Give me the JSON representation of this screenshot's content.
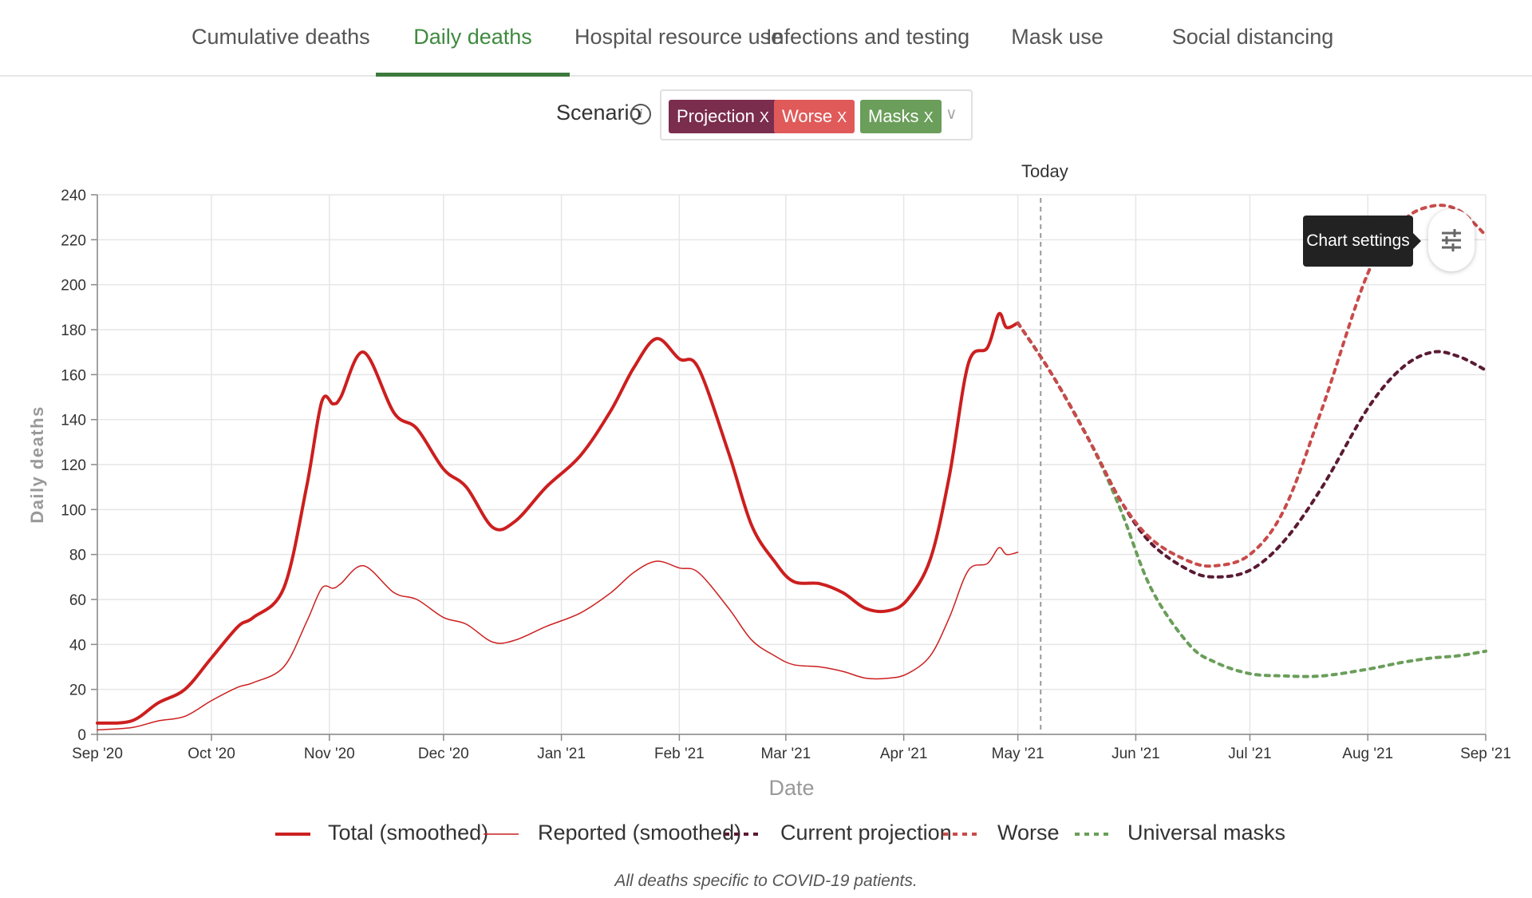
{
  "tabs": [
    {
      "label": "Cumulative deaths",
      "active": false
    },
    {
      "label": "Daily deaths",
      "active": true
    },
    {
      "label": "Hospital resource use",
      "active": false
    },
    {
      "label": "Infections and testing",
      "active": false
    },
    {
      "label": "Mask use",
      "active": false
    },
    {
      "label": "Social distancing",
      "active": false
    }
  ],
  "scenario": {
    "label": "Scenario",
    "info_icon": "info-icon",
    "chips": [
      {
        "label": "Projection",
        "remove": "X",
        "color": "#7b2d4e"
      },
      {
        "label": "Worse",
        "remove": "X",
        "color": "#e05a5a"
      },
      {
        "label": "Masks",
        "remove": "X",
        "color": "#6a9e5a"
      }
    ],
    "dropdown_icon": "chevron-down-icon"
  },
  "tooltip": "Chart settings",
  "settings_icon": "sliders-icon",
  "footnote": "All deaths specific to COVID-19 patients.",
  "chart_data": {
    "type": "line",
    "xlabel": "Date",
    "ylabel": "Daily deaths",
    "ylim": [
      0,
      240
    ],
    "yticks": [
      0,
      20,
      40,
      60,
      80,
      100,
      120,
      140,
      160,
      180,
      200,
      220,
      240
    ],
    "xticks": [
      "Sep '20",
      "Oct '20",
      "Nov '20",
      "Dec '20",
      "Jan '21",
      "Feb '21",
      "Mar '21",
      "Apr '21",
      "May '21",
      "Jun '21",
      "Jul '21",
      "Aug '21",
      "Sep '21"
    ],
    "xtick_dates": [
      "2020-09-01",
      "2020-10-01",
      "2020-11-01",
      "2020-12-01",
      "2021-01-01",
      "2021-02-01",
      "2021-03-01",
      "2021-04-01",
      "2021-05-01",
      "2021-06-01",
      "2021-07-01",
      "2021-08-01",
      "2021-09-01"
    ],
    "xlim": [
      "2020-09-01",
      "2021-09-01"
    ],
    "grid": true,
    "today": {
      "label": "Today",
      "date": "2021-05-07"
    },
    "legend_position": "bottom",
    "series": [
      {
        "name": "Total (smoothed)",
        "color": "#cc1f1f",
        "style": "solid",
        "width": 4,
        "x": [
          "2020-09-01",
          "2020-09-10",
          "2020-09-17",
          "2020-09-24",
          "2020-10-01",
          "2020-10-08",
          "2020-10-12",
          "2020-10-20",
          "2020-10-26",
          "2020-10-30",
          "2020-11-02",
          "2020-11-04",
          "2020-11-10",
          "2020-11-18",
          "2020-11-24",
          "2020-12-01",
          "2020-12-07",
          "2020-12-14",
          "2020-12-20",
          "2020-12-28",
          "2021-01-06",
          "2021-01-14",
          "2021-01-20",
          "2021-01-26",
          "2021-02-01",
          "2021-02-06",
          "2021-02-14",
          "2021-02-20",
          "2021-02-26",
          "2021-03-03",
          "2021-03-10",
          "2021-03-16",
          "2021-03-22",
          "2021-03-28",
          "2021-04-02",
          "2021-04-08",
          "2021-04-13",
          "2021-04-18",
          "2021-04-23",
          "2021-04-26",
          "2021-04-28",
          "2021-05-01"
        ],
        "y": [
          5,
          6,
          14,
          20,
          34,
          48,
          52,
          65,
          110,
          148,
          147,
          150,
          170,
          143,
          136,
          118,
          110,
          92,
          95,
          110,
          124,
          144,
          163,
          176,
          167,
          163,
          125,
          93,
          77,
          68,
          67,
          63,
          56,
          55,
          60,
          78,
          115,
          165,
          172,
          187,
          181,
          183
        ]
      },
      {
        "name": "Reported (smoothed)",
        "color": "#cc1f1f",
        "style": "solid",
        "width": 1.5,
        "x": [
          "2020-09-01",
          "2020-09-10",
          "2020-09-17",
          "2020-09-24",
          "2020-10-01",
          "2020-10-08",
          "2020-10-12",
          "2020-10-20",
          "2020-10-26",
          "2020-10-30",
          "2020-11-02",
          "2020-11-04",
          "2020-11-10",
          "2020-11-18",
          "2020-11-24",
          "2020-12-01",
          "2020-12-07",
          "2020-12-14",
          "2020-12-20",
          "2020-12-28",
          "2021-01-06",
          "2021-01-14",
          "2021-01-20",
          "2021-01-26",
          "2021-02-01",
          "2021-02-06",
          "2021-02-14",
          "2021-02-20",
          "2021-02-26",
          "2021-03-03",
          "2021-03-10",
          "2021-03-16",
          "2021-03-22",
          "2021-03-28",
          "2021-04-02",
          "2021-04-08",
          "2021-04-13",
          "2021-04-18",
          "2021-04-23",
          "2021-04-26",
          "2021-04-28",
          "2021-05-01"
        ],
        "y": [
          2,
          3,
          6,
          8,
          15,
          21,
          23,
          30,
          50,
          65,
          65,
          67,
          75,
          63,
          60,
          52,
          49,
          41,
          42,
          48,
          54,
          63,
          72,
          77,
          74,
          72,
          56,
          42,
          35,
          31,
          30,
          28,
          25,
          25,
          27,
          35,
          52,
          73,
          76,
          83,
          80,
          81
        ]
      },
      {
        "name": "Current projection",
        "color": "#5a1a33",
        "style": "dashed",
        "width": 4,
        "x": [
          "2021-05-01",
          "2021-05-10",
          "2021-05-20",
          "2021-05-28",
          "2021-06-05",
          "2021-06-15",
          "2021-06-22",
          "2021-07-01",
          "2021-07-10",
          "2021-07-20",
          "2021-08-01",
          "2021-08-10",
          "2021-08-18",
          "2021-08-25",
          "2021-09-01"
        ],
        "y": [
          183,
          160,
          130,
          104,
          85,
          73,
          70,
          73,
          86,
          110,
          145,
          163,
          170,
          168,
          162
        ]
      },
      {
        "name": "Worse",
        "color": "#c94a4a",
        "style": "dashed",
        "width": 4,
        "x": [
          "2021-05-01",
          "2021-05-10",
          "2021-05-20",
          "2021-05-28",
          "2021-06-05",
          "2021-06-15",
          "2021-06-22",
          "2021-07-01",
          "2021-07-10",
          "2021-07-20",
          "2021-08-01",
          "2021-08-10",
          "2021-08-18",
          "2021-08-25",
          "2021-09-01"
        ],
        "y": [
          183,
          160,
          130,
          104,
          87,
          77,
          75,
          80,
          100,
          145,
          205,
          228,
          235,
          233,
          222
        ]
      },
      {
        "name": "Universal masks",
        "color": "#6a9e5a",
        "style": "dashed",
        "width": 4,
        "x": [
          "2021-05-01",
          "2021-05-10",
          "2021-05-20",
          "2021-05-28",
          "2021-06-05",
          "2021-06-15",
          "2021-06-22",
          "2021-07-01",
          "2021-07-10",
          "2021-07-20",
          "2021-08-01",
          "2021-08-10",
          "2021-08-18",
          "2021-08-25",
          "2021-09-01"
        ],
        "y": [
          183,
          160,
          130,
          100,
          65,
          40,
          32,
          27,
          26,
          26,
          29,
          32,
          34,
          35,
          37
        ]
      }
    ]
  }
}
